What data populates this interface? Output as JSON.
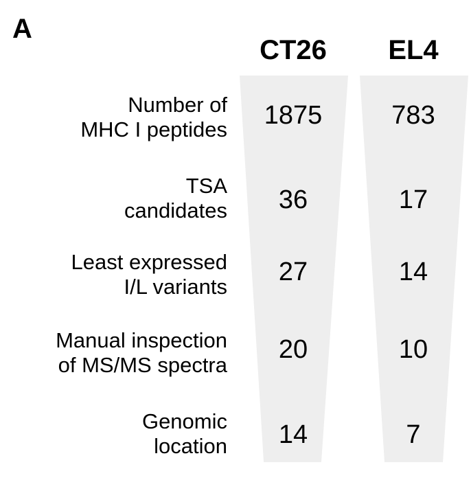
{
  "figure": {
    "panel_label": "A",
    "columns": [
      {
        "label": "CT26"
      },
      {
        "label": "EL4"
      }
    ],
    "rows": [
      {
        "label_lines": [
          "Number of",
          "MHC I peptides"
        ],
        "ct26": "1875",
        "el4": "783"
      },
      {
        "label_lines": [
          "TSA",
          "candidates"
        ],
        "ct26": "36",
        "el4": "17"
      },
      {
        "label_lines": [
          "Least expressed",
          "I/L variants"
        ],
        "ct26": "27",
        "el4": "14"
      },
      {
        "label_lines": [
          "Manual inspection",
          "of MS/MS spectra"
        ],
        "ct26": "20",
        "el4": "10"
      },
      {
        "label_lines": [
          "Genomic",
          "location"
        ],
        "ct26": "14",
        "el4": "7"
      }
    ],
    "colors": {
      "funnel_fill": "#eeeeee",
      "text": "#000000",
      "background": "#ffffff"
    }
  },
  "chart_data": {
    "type": "table",
    "visual_style": "funnel",
    "title": "",
    "categories": [
      "Number of MHC I peptides",
      "TSA candidates",
      "Least expressed I/L variants",
      "Manual inspection of MS/MS spectra",
      "Genomic location"
    ],
    "series": [
      {
        "name": "CT26",
        "values": [
          1875,
          36,
          27,
          20,
          14
        ]
      },
      {
        "name": "EL4",
        "values": [
          783,
          17,
          14,
          10,
          7
        ]
      }
    ],
    "legend_position": "top-column-headers",
    "grid": false
  }
}
